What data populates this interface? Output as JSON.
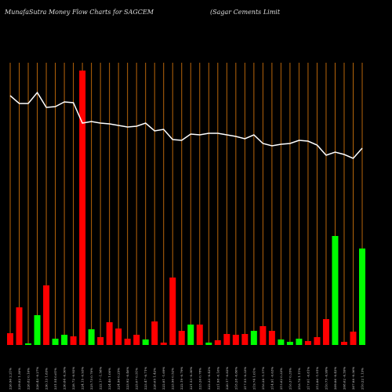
{
  "chart_data": {
    "type": "bar",
    "title": "MunafaSutra  Money Flow  Charts for SAGCEM",
    "subtitle": "(Sagar Cements Limit",
    "categories": [
      "226.96 2.21%",
      "229.82 1.30%",
      "226.82 0.16%",
      "226.43 -0.27%",
      "230.13 1.83%",
      "231.54 0.61%",
      "230.84 -0.30%",
      "228.72 -0.92%",
      "224.15 -0.93%",
      "225.73 0.70%",
      "222.17 -1.58%",
      "224.40 1.00%",
      "224.96 0.25%",
      "223.92 -0.46%",
      "225.07 0.51%",
      "223.47 -0.71%",
      "226.65 1.42%",
      "222.81 -1.69%",
      "223.96 0.52%",
      "222.19 -0.79%",
      "221.53 -0.30%",
      "223.26 0.78%",
      "222.33 -0.42%",
      "221.98 -0.16%",
      "220.17 -0.82%",
      "218.28 -0.86%",
      "217.55 -0.33%",
      "219.74 1.01%",
      "216.28 -1.57%",
      "214.91 -0.63%",
      "215.62 0.33%",
      "216.37 0.35%",
      "218.78 1.11%",
      "217.01 -0.81%",
      "212.86 -1.91%",
      "210.75 -0.99%",
      "209.86 -0.42%",
      "208.62 -0.59%",
      "207.88 -0.36%",
      "210.22 1.13%"
    ],
    "series": [
      {
        "name": "Money Flow",
        "values": [
          15,
          48,
          2,
          38,
          76,
          8,
          13,
          11,
          350,
          20,
          10,
          29,
          21,
          8,
          13,
          7,
          30,
          3,
          86,
          18,
          26,
          26,
          3,
          6,
          14,
          13,
          14,
          18,
          24,
          18,
          7,
          4,
          8,
          5,
          10,
          33,
          139,
          4,
          17,
          123
        ],
        "colors": [
          "red",
          "red",
          "lime",
          "lime",
          "red",
          "lime",
          "lime",
          "red",
          "red",
          "lime",
          "red",
          "red",
          "red",
          "red",
          "red",
          "lime",
          "red",
          "red",
          "red",
          "red",
          "lime",
          "red",
          "lime",
          "red",
          "red",
          "red",
          "red",
          "lime",
          "red",
          "red",
          "lime",
          "lime",
          "lime",
          "red",
          "red",
          "red",
          "lime",
          "red",
          "red",
          "lime"
        ]
      },
      {
        "name": "Price",
        "axis": "y2",
        "color": "#ffffff",
        "values": [
          378,
          368,
          368,
          382,
          363,
          364,
          370,
          369,
          343,
          345,
          343,
          342,
          340,
          338,
          339,
          343,
          333,
          335,
          322,
          321,
          329,
          328,
          330,
          330,
          328,
          326,
          323,
          328,
          317,
          314,
          316,
          317,
          321,
          320,
          315,
          302,
          306,
          303,
          298,
          311
        ]
      }
    ],
    "ylim": [
      0,
      350
    ],
    "y2lim": [
      0,
      500
    ],
    "gridline_color": "#b8650a"
  }
}
